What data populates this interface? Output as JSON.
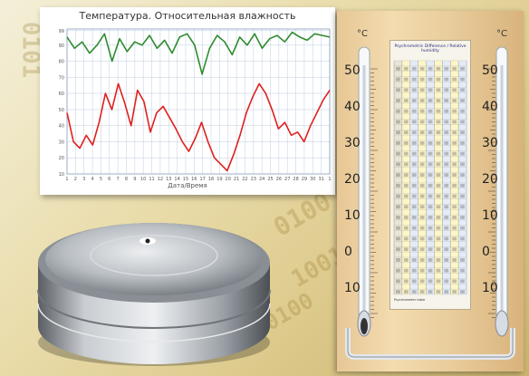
{
  "chart": {
    "title": "Температура. Относительная влажность",
    "xlabel": "Дата/Время",
    "y_ticks": [
      "99",
      "90",
      "80",
      "70",
      "60",
      "50",
      "40",
      "30",
      "20",
      "10"
    ],
    "x_ticks": [
      "1",
      "2",
      "3",
      "4",
      "5",
      "6",
      "7",
      "8",
      "9",
      "10",
      "11",
      "12",
      "13",
      "14",
      "15",
      "16",
      "17",
      "18",
      "19",
      "20",
      "21",
      "22",
      "23",
      "24",
      "25",
      "26",
      "27",
      "28",
      "29",
      "30",
      "31",
      "1"
    ]
  },
  "chart_data": {
    "type": "line",
    "title": "Температура. Относительная влажность",
    "xlabel": "Дата/Время",
    "ylim": [
      10,
      100
    ],
    "grid": true,
    "series": [
      {
        "color": "#2e8b2e",
        "values": [
          95,
          88,
          92,
          85,
          90,
          97,
          80,
          94,
          86,
          92,
          90,
          96,
          88,
          93,
          85,
          95,
          97,
          90,
          72,
          88,
          96,
          92,
          84,
          95,
          90,
          97,
          88,
          94,
          96,
          92,
          98,
          95,
          93,
          97,
          96,
          95
        ]
      },
      {
        "color": "#e02020",
        "values": [
          48,
          30,
          26,
          34,
          28,
          42,
          60,
          50,
          66,
          54,
          40,
          62,
          55,
          36,
          48,
          52,
          45,
          38,
          30,
          24,
          32,
          42,
          30,
          20,
          16,
          12,
          22,
          34,
          48,
          58,
          66,
          60,
          50,
          38,
          42,
          34,
          36,
          30,
          40,
          48,
          56,
          62
        ]
      }
    ]
  },
  "logger": {
    "color": "#9ea3a8"
  },
  "board": {
    "left_unit": "°C",
    "right_unit": "°C",
    "scale": [
      "50",
      "40",
      "30",
      "20",
      "10",
      "0",
      "10"
    ],
    "table_title": "Psychrometric Difference / Relative humidity",
    "table_foot": "Psychrometer table"
  },
  "background": {
    "digits": [
      "0101",
      "0100",
      "1001",
      "010",
      "0100"
    ]
  }
}
